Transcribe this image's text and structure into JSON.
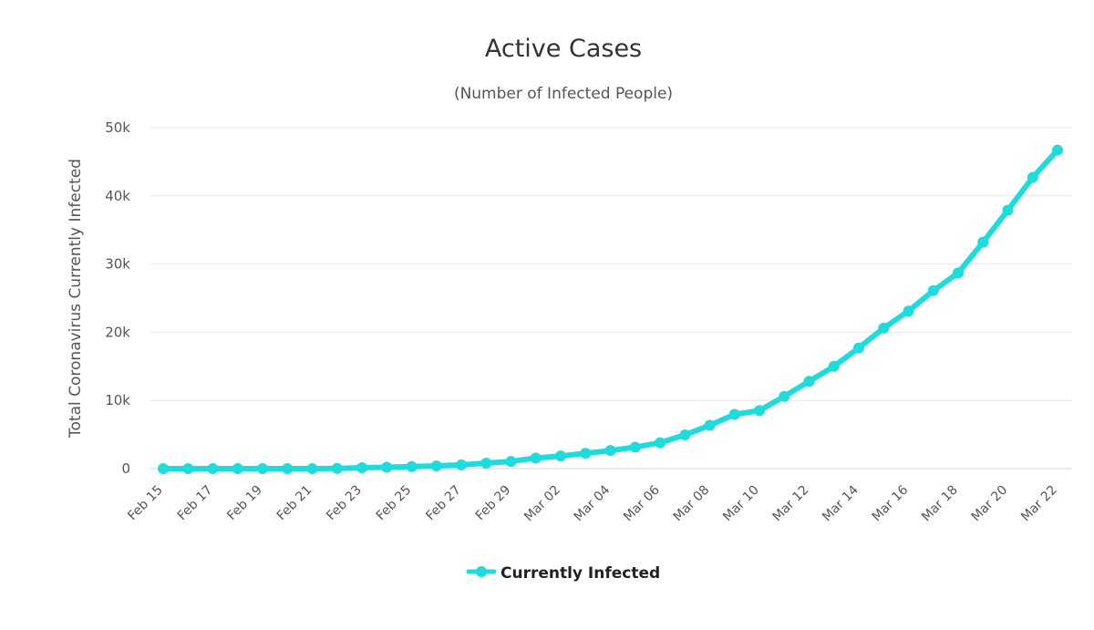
{
  "chart_data": {
    "type": "line",
    "title": "Active Cases",
    "subtitle": "(Number of Infected People)",
    "ylabel": "Total Coronavirus Currently Infected",
    "xlabel": "",
    "ylim": [
      0,
      50000
    ],
    "y_ticks": [
      0,
      10000,
      20000,
      30000,
      40000,
      50000
    ],
    "y_tick_labels": [
      "0",
      "10k",
      "20k",
      "30k",
      "40k",
      "50k"
    ],
    "x_tick_labels": [
      "Feb 15",
      "Feb 17",
      "Feb 19",
      "Feb 21",
      "Feb 23",
      "Feb 25",
      "Feb 27",
      "Feb 29",
      "Mar 02",
      "Mar 04",
      "Mar 06",
      "Mar 08",
      "Mar 10",
      "Mar 12",
      "Mar 14",
      "Mar 16",
      "Mar 18",
      "Mar 20",
      "Mar 22"
    ],
    "categories": [
      "Feb 15",
      "Feb 16",
      "Feb 17",
      "Feb 18",
      "Feb 19",
      "Feb 20",
      "Feb 21",
      "Feb 22",
      "Feb 23",
      "Feb 24",
      "Feb 25",
      "Feb 26",
      "Feb 27",
      "Feb 28",
      "Feb 29",
      "Mar 01",
      "Mar 02",
      "Mar 03",
      "Mar 04",
      "Mar 05",
      "Mar 06",
      "Mar 07",
      "Mar 08",
      "Mar 09",
      "Mar 10",
      "Mar 11",
      "Mar 12",
      "Mar 13",
      "Mar 14",
      "Mar 15",
      "Mar 16",
      "Mar 17",
      "Mar 18",
      "Mar 19",
      "Mar 20",
      "Mar 21",
      "Mar 22"
    ],
    "series": [
      {
        "name": "Currently Infected",
        "color": "#1edcdc",
        "values": [
          3,
          3,
          3,
          3,
          3,
          3,
          3,
          30,
          130,
          200,
          300,
          400,
          550,
          800,
          1050,
          1550,
          1850,
          2250,
          2650,
          3150,
          3800,
          4950,
          6350,
          7950,
          8500,
          10600,
          12800,
          15000,
          17700,
          20600,
          23100,
          26100,
          28700,
          33200,
          37900,
          42700,
          46700
        ]
      }
    ],
    "grid": true,
    "legend_position": "bottom-center"
  }
}
